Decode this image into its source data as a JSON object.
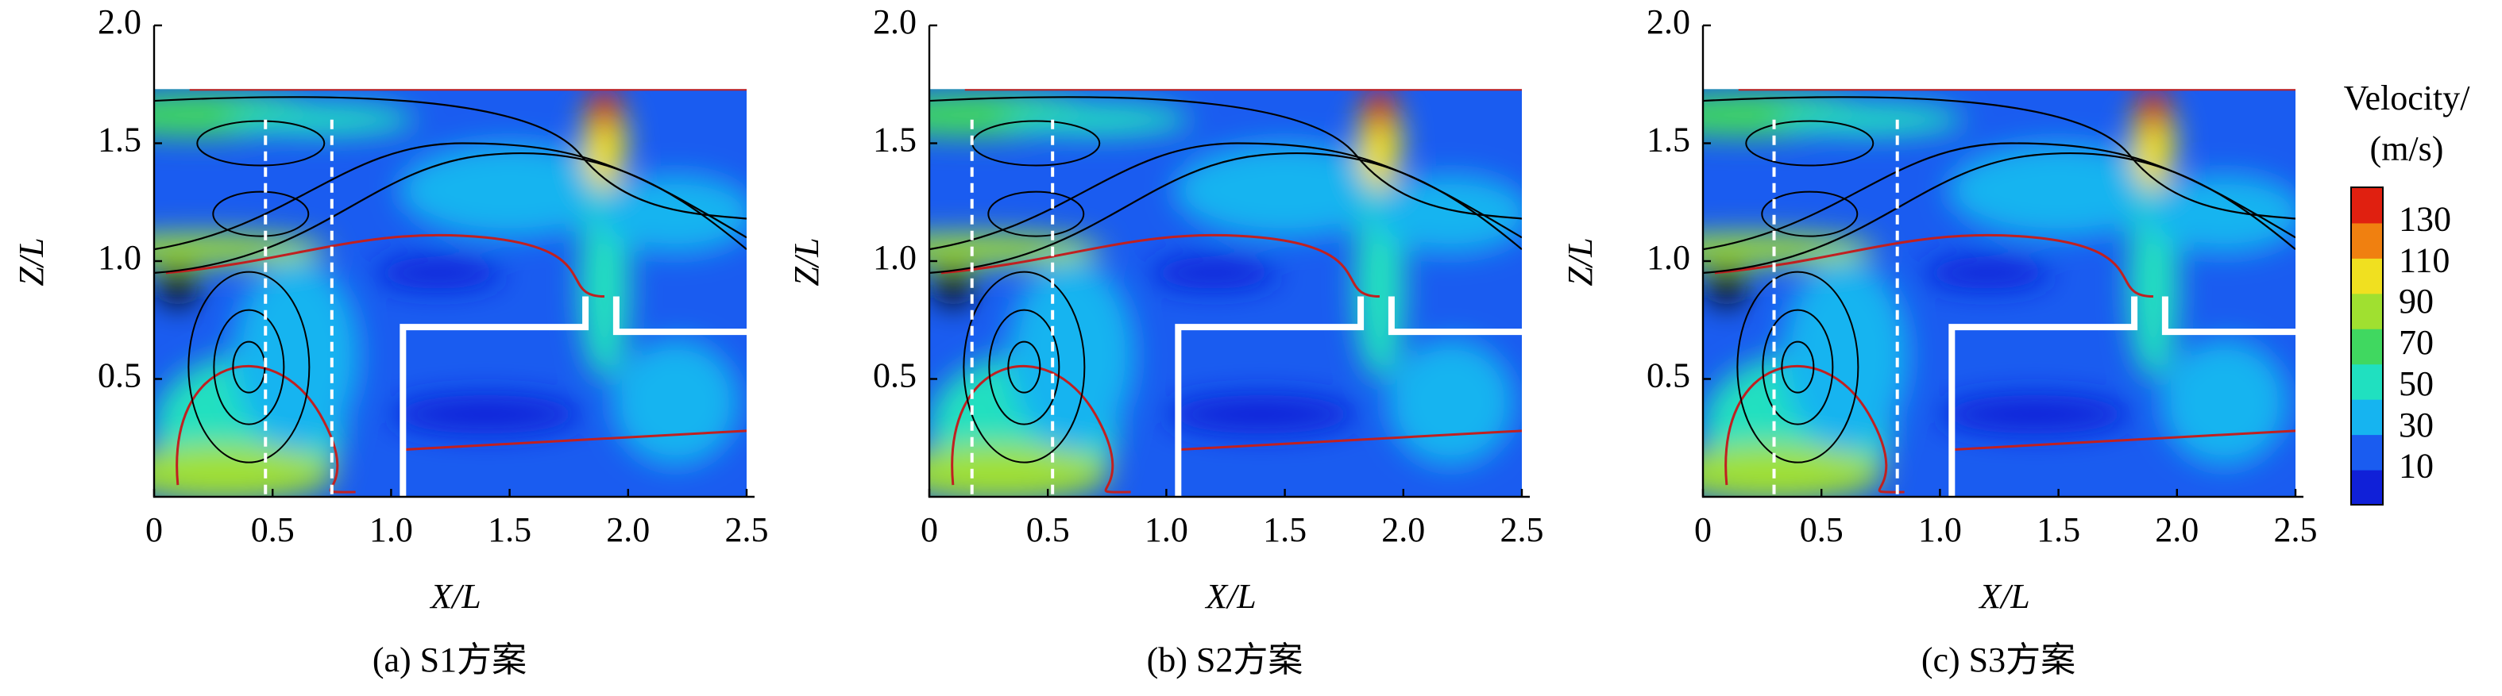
{
  "chart_data": [
    {
      "type": "flowfield",
      "caption": "(a) S1方案",
      "xlabel": "X/L",
      "ylabel": "Z/L",
      "xlim": [
        0,
        2.5
      ],
      "ylim": [
        0,
        2.0
      ],
      "xticks": [
        0,
        0.5,
        {
          "value": 1,
          "label": "1.0"
        },
        1.5,
        {
          "value": 2,
          "label": "2.0"
        },
        2.5
      ],
      "yticks": [
        0.5,
        {
          "value": 1,
          "label": "1.0"
        },
        1.5,
        {
          "value": 2,
          "label": "2.0"
        }
      ]
    },
    {
      "type": "flowfield",
      "caption": "(b) S2方案",
      "xlabel": "X/L",
      "ylabel": "Z/L",
      "xlim": [
        0,
        2.5
      ],
      "ylim": [
        0,
        2.0
      ],
      "xticks": [
        0,
        0.5,
        {
          "value": 1,
          "label": "1.0"
        },
        1.5,
        {
          "value": 2,
          "label": "2.0"
        },
        2.5
      ],
      "yticks": [
        0.5,
        {
          "value": 1,
          "label": "1.0"
        },
        1.5,
        {
          "value": 2,
          "label": "2.0"
        }
      ]
    },
    {
      "type": "flowfield",
      "caption": "(c) S3方案",
      "xlabel": "X/L",
      "ylabel": "Z/L",
      "xlim": [
        0,
        2.5
      ],
      "ylim": [
        0,
        2.0
      ],
      "xticks": [
        0,
        0.5,
        {
          "value": 1,
          "label": "1.0"
        },
        1.5,
        {
          "value": 2,
          "label": "2.0"
        },
        2.5
      ],
      "yticks": [
        0.5,
        {
          "value": 1,
          "label": "1.0"
        },
        1.5,
        {
          "value": 2,
          "label": "2.0"
        }
      ]
    }
  ],
  "colorbar": {
    "title": [
      "Velocity/",
      "(m/s)"
    ],
    "ticks": [
      130,
      110,
      90,
      70,
      50,
      30,
      10
    ],
    "colors": [
      "#1020d8",
      "#1a5cf0",
      "#16b4f0",
      "#20e0c0",
      "#40d860",
      "#a0e030",
      "#f0e020",
      "#f08010",
      "#e02010"
    ]
  }
}
